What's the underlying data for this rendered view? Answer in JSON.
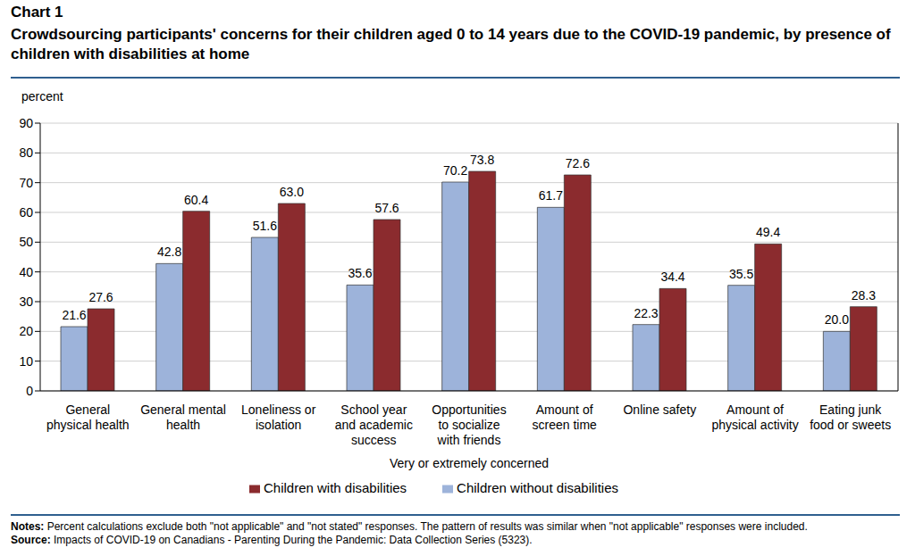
{
  "chart_data": {
    "type": "bar",
    "figure_label": "Chart 1",
    "title": "Crowdsourcing participants' concerns for their children aged 0 to 14 years due to the COVID-19 pandemic, by presence of children with disabilities at home",
    "y_label": "percent",
    "x_label": "Very or extremely concerned",
    "categories": [
      "General\nphysical health",
      "General mental\nhealth",
      "Loneliness or\nisolation",
      "School year\nand academic\nsuccess",
      "Opportunities\nto socialize\nwith friends",
      "Amount of\nscreen time",
      "Online safety",
      "Amount of\nphysical activity",
      "Eating junk\nfood or sweets"
    ],
    "series": [
      {
        "name": "Children without disabilities",
        "color": "#9db3da",
        "values": [
          21.6,
          42.8,
          51.6,
          35.6,
          70.2,
          61.7,
          22.3,
          35.5,
          20.0
        ],
        "value_labels": [
          "21.6",
          "42.8",
          "51.6",
          "35.6",
          "70.2",
          "61.7",
          "22.3",
          "35.5",
          "20.0"
        ]
      },
      {
        "name": "Children with disabilities",
        "color": "#8b2b2e",
        "values": [
          27.6,
          60.4,
          63.0,
          57.6,
          73.8,
          72.6,
          34.4,
          49.4,
          28.3
        ],
        "value_labels": [
          "27.6",
          "60.4",
          "63.0",
          "57.6",
          "73.8",
          "72.6",
          "34.4",
          "49.4",
          "28.3"
        ]
      }
    ],
    "ylim": [
      0,
      90
    ],
    "yticks": [
      0,
      10,
      20,
      30,
      40,
      50,
      60,
      70,
      80,
      90
    ],
    "grid": true,
    "legend": "bottom",
    "data_labels": true,
    "notes": "Notes: Percent calculations exclude both \"not applicable\" and \"not stated\" responses. The pattern of results was similar when \"not applicable\" responses were included.",
    "source": "Source: Impacts of COVID-19 on Canadians - Parenting During the Pandemic: Data Collection Series (5323)."
  }
}
